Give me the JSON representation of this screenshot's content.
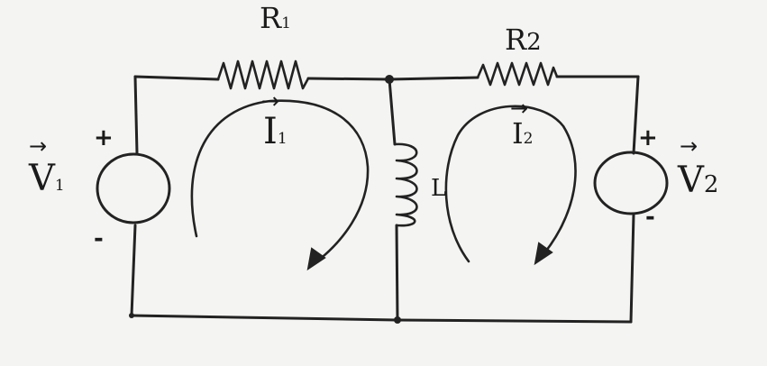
{
  "components": {
    "r1": {
      "name": "R",
      "sub": "1"
    },
    "r2": {
      "name": "R",
      "sub": "2"
    },
    "inductor": {
      "name": "L"
    },
    "v1": {
      "arrow": "→",
      "name": "V",
      "sub": "1",
      "plus": "+",
      "minus": "-"
    },
    "v2": {
      "arrow": "→",
      "name": "V",
      "sub": "2",
      "plus": "+",
      "minus": "-"
    }
  },
  "loops": {
    "i1": {
      "arrow": "→",
      "name": "I",
      "sub": "1"
    },
    "i2": {
      "arrow": "→",
      "name": "I",
      "sub": "2"
    }
  }
}
